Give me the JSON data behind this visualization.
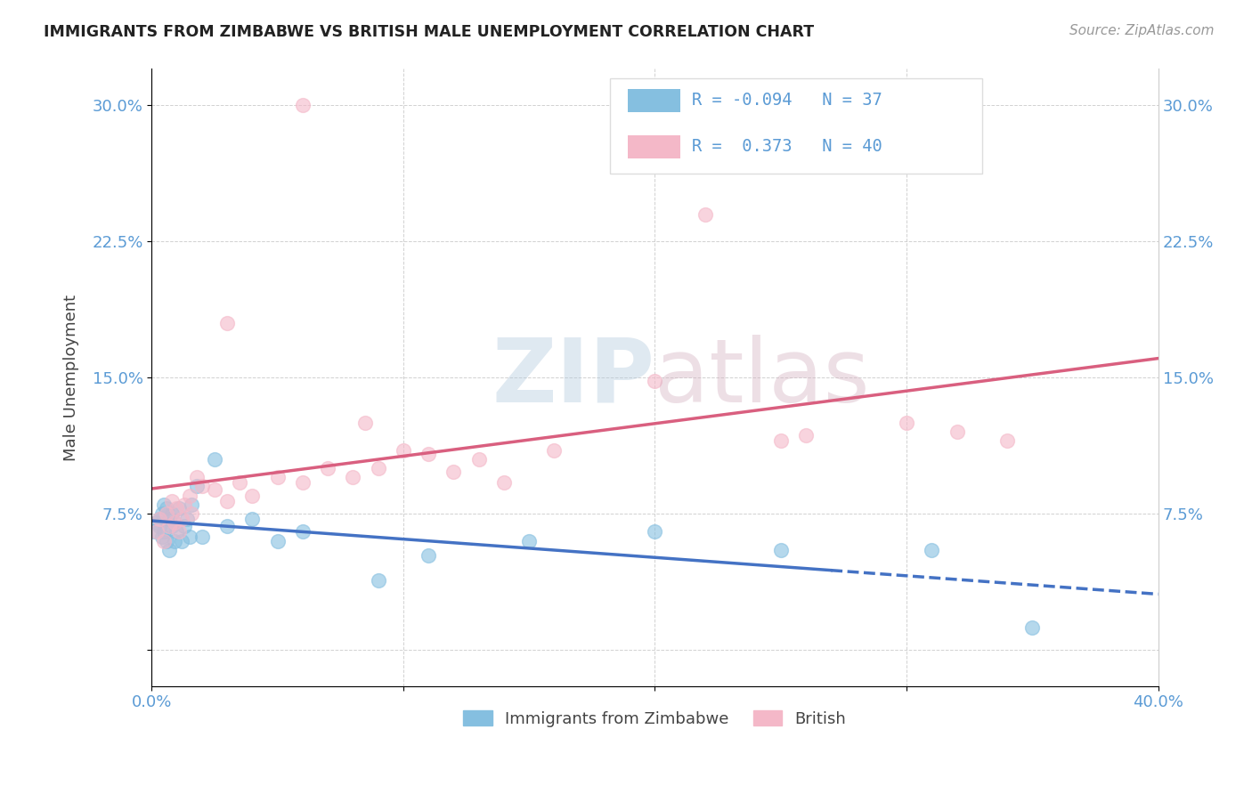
{
  "title": "IMMIGRANTS FROM ZIMBABWE VS BRITISH MALE UNEMPLOYMENT CORRELATION CHART",
  "source": "Source: ZipAtlas.com",
  "ylabel": "Male Unemployment",
  "xlim": [
    0.0,
    0.4
  ],
  "ylim": [
    -0.02,
    0.32
  ],
  "yticks": [
    0.0,
    0.075,
    0.15,
    0.225,
    0.3
  ],
  "ytick_labels": [
    "",
    "7.5%",
    "15.0%",
    "22.5%",
    "30.0%"
  ],
  "xticks": [
    0.0,
    0.1,
    0.2,
    0.3,
    0.4
  ],
  "xtick_labels": [
    "0.0%",
    "",
    "",
    "",
    "40.0%"
  ],
  "legend_label1": "Immigrants from Zimbabwe",
  "legend_label2": "British",
  "blue_color": "#85bfe0",
  "pink_color": "#f4b8c8",
  "blue_line_color": "#4472c4",
  "pink_line_color": "#d95f7f",
  "bg_color": "#ffffff",
  "title_color": "#222222",
  "axis_color": "#444444",
  "tick_color": "#5b9bd5",
  "grid_color": "#cccccc",
  "blue_x": [
    0.001,
    0.002,
    0.003,
    0.003,
    0.004,
    0.004,
    0.005,
    0.005,
    0.006,
    0.006,
    0.007,
    0.007,
    0.008,
    0.008,
    0.009,
    0.009,
    0.01,
    0.011,
    0.012,
    0.013,
    0.014,
    0.015,
    0.016,
    0.018,
    0.02,
    0.025,
    0.03,
    0.04,
    0.05,
    0.06,
    0.09,
    0.11,
    0.15,
    0.2,
    0.25,
    0.31,
    0.35
  ],
  "blue_y": [
    0.065,
    0.07,
    0.068,
    0.072,
    0.062,
    0.075,
    0.065,
    0.08,
    0.06,
    0.078,
    0.055,
    0.072,
    0.068,
    0.075,
    0.06,
    0.07,
    0.065,
    0.078,
    0.06,
    0.068,
    0.072,
    0.062,
    0.08,
    0.09,
    0.062,
    0.105,
    0.068,
    0.072,
    0.06,
    0.065,
    0.038,
    0.052,
    0.06,
    0.065,
    0.055,
    0.055,
    0.012
  ],
  "pink_x": [
    0.002,
    0.003,
    0.005,
    0.006,
    0.007,
    0.008,
    0.009,
    0.01,
    0.011,
    0.012,
    0.013,
    0.015,
    0.016,
    0.018,
    0.02,
    0.025,
    0.03,
    0.035,
    0.04,
    0.05,
    0.06,
    0.07,
    0.08,
    0.09,
    0.1,
    0.11,
    0.12,
    0.13,
    0.14,
    0.16,
    0.2,
    0.22,
    0.25,
    0.26,
    0.3,
    0.32,
    0.34,
    0.06,
    0.085,
    0.03
  ],
  "pink_y": [
    0.065,
    0.072,
    0.06,
    0.075,
    0.068,
    0.082,
    0.07,
    0.078,
    0.065,
    0.072,
    0.08,
    0.085,
    0.075,
    0.095,
    0.09,
    0.088,
    0.082,
    0.092,
    0.085,
    0.095,
    0.092,
    0.1,
    0.095,
    0.1,
    0.11,
    0.108,
    0.098,
    0.105,
    0.092,
    0.11,
    0.148,
    0.24,
    0.115,
    0.118,
    0.125,
    0.12,
    0.115,
    0.3,
    0.125,
    0.18
  ]
}
